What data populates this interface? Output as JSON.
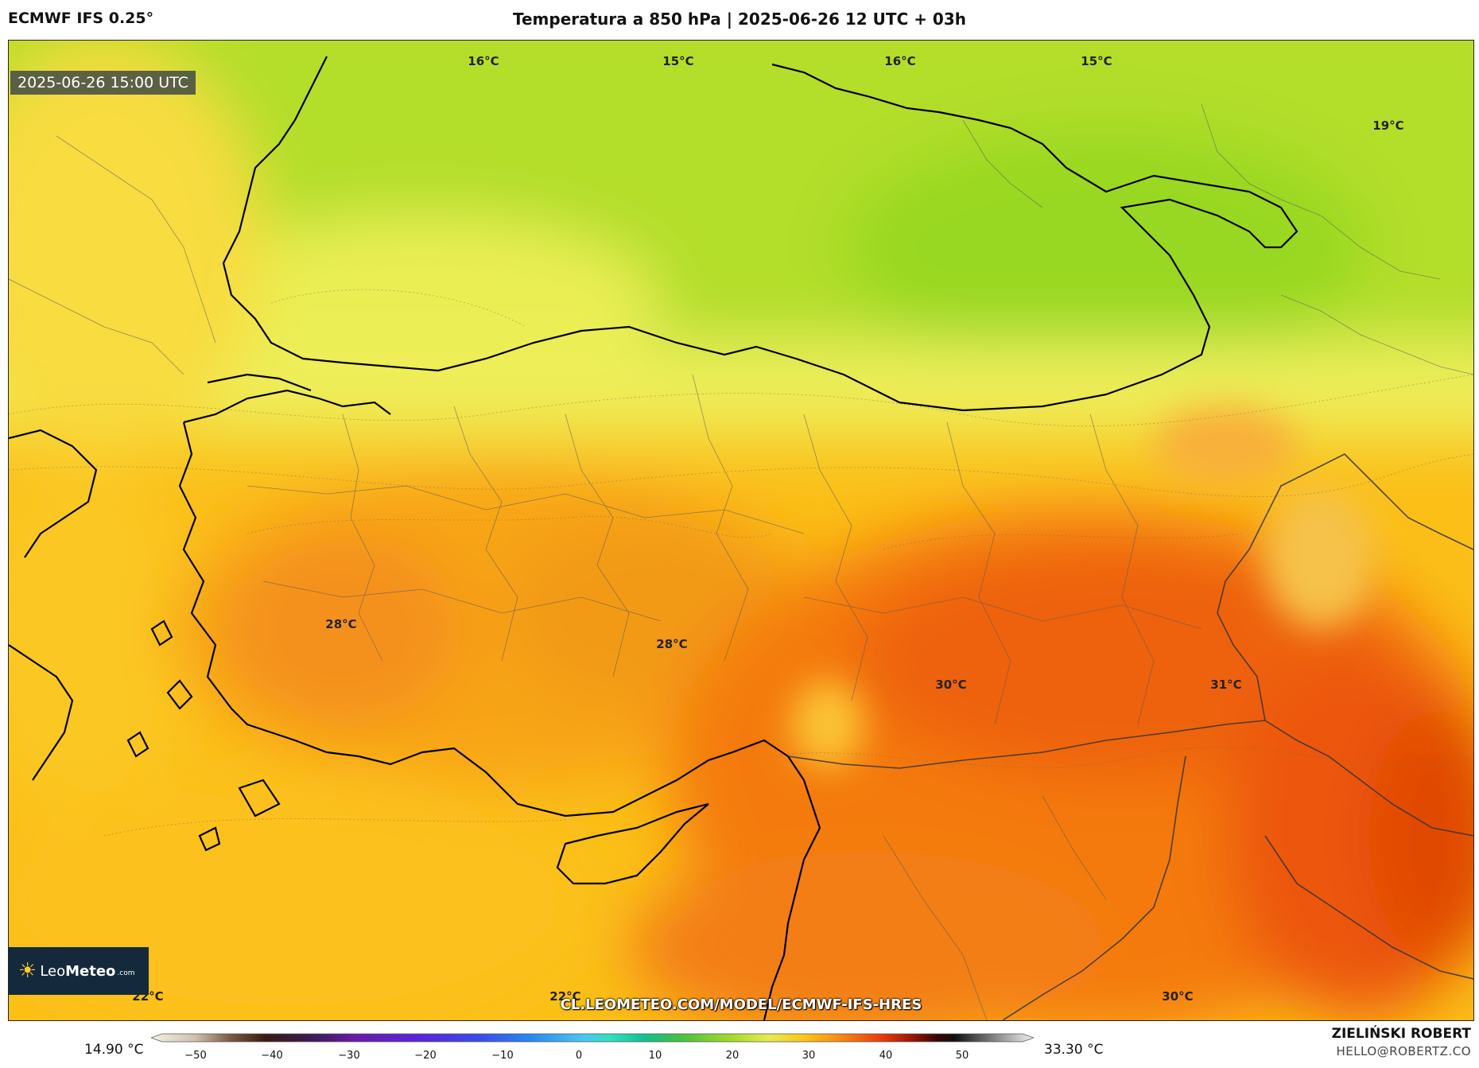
{
  "header": {
    "model": "ECMWF IFS 0.25°",
    "title": "Temperatura a 850 hPa | 2025-06-26 12 UTC + 03h"
  },
  "map": {
    "valid_time": "2025-06-26 15:00 UTC",
    "temperature_labels": [
      {
        "text": "16°C"
      },
      {
        "text": "15°C"
      },
      {
        "text": "16°C"
      },
      {
        "text": "15°C"
      },
      {
        "text": "19°C"
      },
      {
        "text": "28°C"
      },
      {
        "text": "28°C"
      },
      {
        "text": "30°C"
      },
      {
        "text": "31°C"
      },
      {
        "text": "22°C"
      },
      {
        "text": "22°C"
      },
      {
        "text": "30°C"
      }
    ],
    "logo": {
      "leo": "Leo",
      "meteo": "Meteo",
      "com": ".com"
    },
    "source_url": "CL.LEOMETEO.COM/MODEL/ECMWF-IFS-HRES"
  },
  "colorbar": {
    "min_value": "14.90 °C",
    "max_value": "33.30 °C",
    "ticks": [
      "−50",
      "−40",
      "−30",
      "−20",
      "−10",
      "0",
      "10",
      "20",
      "30",
      "40",
      "50"
    ]
  },
  "footer": {
    "author": "ZIELIŃSKI ROBERT",
    "email": "HELLO@ROBERTZ.CO"
  },
  "colors": {
    "green": "#a6dc2a",
    "yellow": "#f2ec55",
    "orange": "#fbb615",
    "dark_orange": "#f47a10",
    "red_orange": "#ec5a0a"
  }
}
